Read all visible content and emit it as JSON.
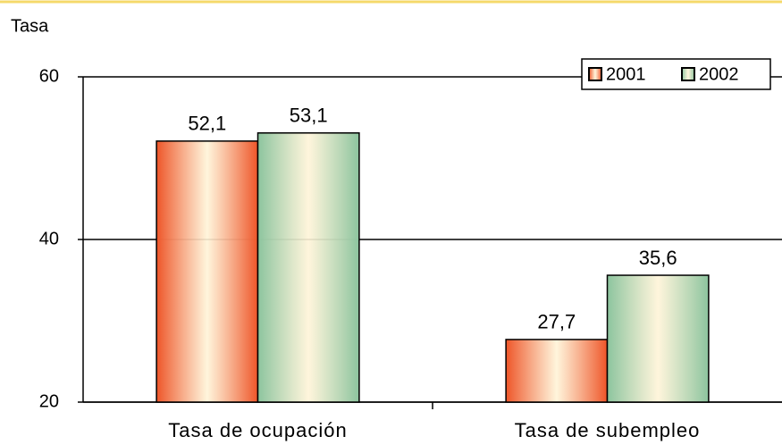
{
  "chart_data": {
    "type": "bar",
    "y_label": "Tasa",
    "categories": [
      "Tasa de ocupación",
      "Tasa de subempleo"
    ],
    "series": [
      {
        "name": "2001",
        "color": "#ee5528",
        "values": [
          52.1,
          27.7
        ],
        "value_labels": [
          "52,1",
          "27,7"
        ]
      },
      {
        "name": "2002",
        "color": "#8cc49e",
        "values": [
          53.1,
          35.6
        ],
        "value_labels": [
          "53,1",
          "35,6"
        ]
      }
    ],
    "ylim": [
      20,
      60
    ],
    "yticks": [
      20,
      40,
      60
    ],
    "grid": true,
    "legend": "top-right"
  }
}
